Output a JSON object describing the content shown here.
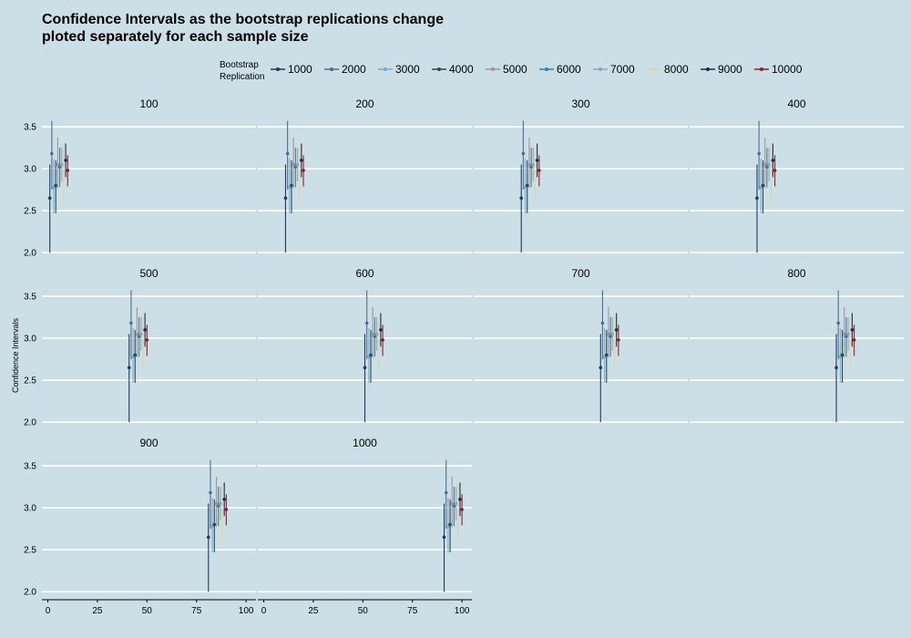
{
  "title_lines": [
    "Confidence Intervals as the bootstrap replications change",
    "ploted separately for each sample size"
  ],
  "chart_data": {
    "type": "errorbar",
    "ylabel": "Confidence Intervals",
    "xlabel": "",
    "legend": {
      "title_lines": [
        "Bootstrap",
        "Replication"
      ],
      "placement": "top"
    },
    "facets": [
      "100",
      "200",
      "300",
      "400",
      "500",
      "600",
      "700",
      "800",
      "900",
      "1000"
    ],
    "xlim": [
      -3,
      105
    ],
    "ylim": [
      1.97,
      3.62
    ],
    "x_ticks": [
      "0",
      "25",
      "50",
      "75",
      "100"
    ],
    "y_ticks": [
      "2.0",
      "2.5",
      "3.0",
      "3.5"
    ],
    "grid": true,
    "series": [
      {
        "name": "1000",
        "color": "#1c3a5e",
        "offset": 1,
        "estimate": 2.65,
        "lower": 2.0,
        "upper": 3.05
      },
      {
        "name": "2000",
        "color": "#4a6f93",
        "offset": 2,
        "estimate": 3.18,
        "lower": 2.75,
        "upper": 3.57
      },
      {
        "name": "3000",
        "color": "#78a9d0",
        "offset": 3,
        "estimate": 2.78,
        "lower": 2.47,
        "upper": 3.12
      },
      {
        "name": "4000",
        "color": "#1f4a55",
        "offset": 4,
        "estimate": 2.8,
        "lower": 2.47,
        "upper": 3.1
      },
      {
        "name": "5000",
        "color": "#b08d93",
        "offset": 5,
        "estimate": 3.05,
        "lower": 2.77,
        "upper": 3.37
      },
      {
        "name": "6000",
        "color": "#2e7fb5",
        "offset": 6,
        "estimate": 3.02,
        "lower": 2.78,
        "upper": 3.25
      },
      {
        "name": "7000",
        "color": "#8ea6b4",
        "offset": 7,
        "estimate": 3.05,
        "lower": 2.85,
        "upper": 3.25
      },
      {
        "name": "8000",
        "color": "#ddd3a0",
        "offset": 8,
        "estimate": 2.95,
        "lower": 2.62,
        "upper": 3.27
      },
      {
        "name": "9000",
        "color": "#1b2a4e",
        "offset": 9,
        "estimate": 3.1,
        "lower": 2.9,
        "upper": 3.3
      },
      {
        "name": "10000",
        "color": "#8b1e2d",
        "offset": 10,
        "estimate": 2.98,
        "lower": 2.79,
        "upper": 3.16
      }
    ]
  }
}
